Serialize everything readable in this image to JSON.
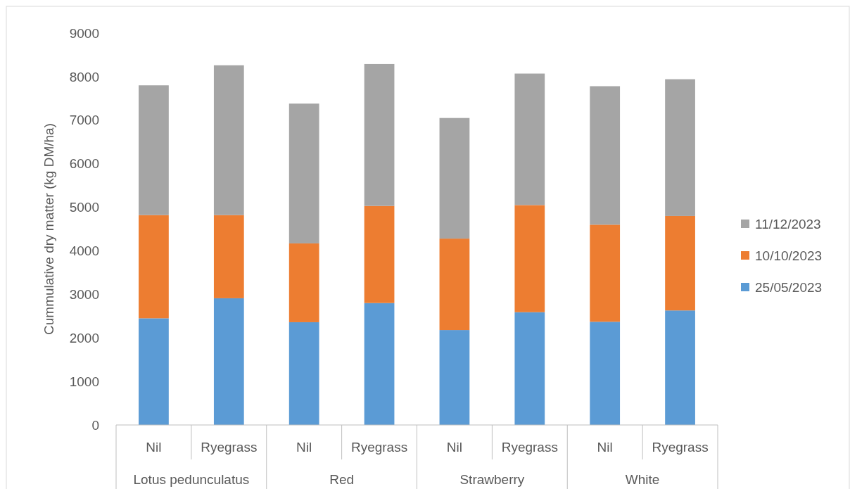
{
  "chart_data": {
    "type": "bar",
    "stacked": true,
    "ylabel": "Cummulative dry matter (kg DM/ha)",
    "categories": [
      "Nil",
      "Ryegrass",
      "Nil",
      "Ryegrass",
      "Nil",
      "Ryegrass",
      "Nil",
      "Ryegrass"
    ],
    "annotations": [
      "Lotus pedunculatus",
      "Red",
      "Strawberry",
      "White"
    ],
    "series": [
      {
        "name": "25/05/2023",
        "color": "#5b9bd5",
        "values": [
          2450,
          2910,
          2360,
          2800,
          2180,
          2590,
          2370,
          2630
        ]
      },
      {
        "name": "10/10/2023",
        "color": "#ed7d31",
        "values": [
          2370,
          1910,
          1810,
          2230,
          2100,
          2460,
          2230,
          2170
        ]
      },
      {
        "name": "11/12/2023",
        "color": "#a5a5a5",
        "values": [
          2980,
          3440,
          3210,
          3260,
          2770,
          3020,
          3180,
          3140
        ]
      }
    ],
    "ylim": [
      0,
      9000
    ],
    "yticks": [
      0,
      1000,
      2000,
      3000,
      4000,
      5000,
      6000,
      7000,
      8000,
      9000
    ],
    "grid": false,
    "legend": "right"
  }
}
